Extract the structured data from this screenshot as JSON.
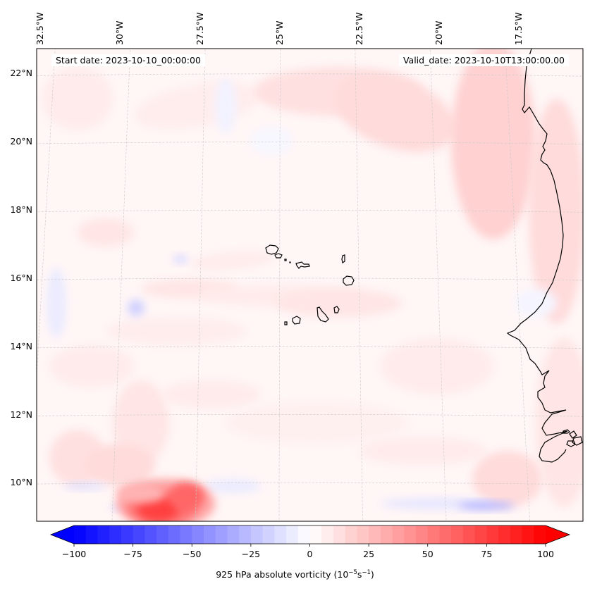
{
  "chart_data": {
    "type": "heatmap",
    "title": "",
    "variable": "925 hPa absolute vorticity",
    "units_label": "(10^-5 s^-1)",
    "annotations": {
      "start_date": "Start date: 2023-10-10_00:00:00",
      "valid_date": "Valid_date: 2023-10-10T13:00:00.00"
    },
    "map": {
      "projection": "conic (cartopy)",
      "lon_ticks": [
        {
          "value": -32.5,
          "label": "32.5°W"
        },
        {
          "value": -30,
          "label": "30°W"
        },
        {
          "value": -27.5,
          "label": "27.5°W"
        },
        {
          "value": -25,
          "label": "25°W"
        },
        {
          "value": -22.5,
          "label": "22.5°W"
        },
        {
          "value": -20,
          "label": "20°W"
        },
        {
          "value": -17.5,
          "label": "17.5°W"
        }
      ],
      "lat_ticks": [
        {
          "value": 22,
          "label": "22°N"
        },
        {
          "value": 20,
          "label": "20°N"
        },
        {
          "value": 18,
          "label": "18°N"
        },
        {
          "value": 16,
          "label": "16°N"
        },
        {
          "value": 14,
          "label": "14°N"
        },
        {
          "value": 12,
          "label": "12°N"
        },
        {
          "value": 10,
          "label": "10°N"
        }
      ],
      "lon_range": [
        -32.7,
        -15.4
      ],
      "lat_range": [
        8.9,
        22.8
      ],
      "grid": true,
      "features": [
        {
          "name": "Cape Verde islands",
          "lon": -24,
          "lat": 16
        },
        {
          "name": "West African coastline",
          "lon": -17,
          "lat": 15
        }
      ],
      "field_highlights": [
        {
          "description": "strong positive vorticity maximum",
          "lon": -28.3,
          "lat": 9.2,
          "value": 80
        },
        {
          "description": "weak negative vorticity band",
          "lon": -19.4,
          "lat": 9.3,
          "value": -30
        },
        {
          "description": "weak negative vorticity patch",
          "lon": -29.4,
          "lat": 15.0,
          "value": -15
        },
        {
          "description": "background weak positive vorticity",
          "value": 5
        }
      ]
    },
    "colorbar": {
      "cmap": "bwr",
      "vmin": -100,
      "vmax": 100,
      "step": 5,
      "extend": "both",
      "ticks": [
        -100,
        -75,
        -50,
        -25,
        0,
        25,
        50,
        75,
        100
      ],
      "tick_labels": [
        "−100",
        "−75",
        "−50",
        "−25",
        "0",
        "25",
        "50",
        "75",
        "100"
      ],
      "orientation": "horizontal",
      "label_main": "925 hPa absolute vorticity (10",
      "label_exp1": "−5",
      "label_mid": "s",
      "label_exp2": "−1",
      "label_end": ")"
    }
  }
}
